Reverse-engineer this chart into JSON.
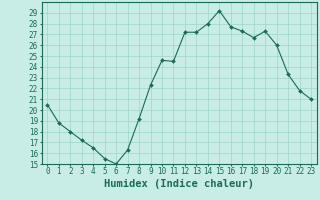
{
  "x": [
    0,
    1,
    2,
    3,
    4,
    5,
    6,
    7,
    8,
    9,
    10,
    11,
    12,
    13,
    14,
    15,
    16,
    17,
    18,
    19,
    20,
    21,
    22,
    23
  ],
  "y": [
    20.5,
    18.8,
    18.0,
    17.2,
    16.5,
    15.5,
    15.0,
    16.3,
    19.2,
    22.3,
    24.6,
    24.5,
    27.2,
    27.2,
    28.0,
    29.2,
    27.7,
    27.3,
    26.7,
    27.3,
    26.0,
    23.3,
    21.8,
    21.0
  ],
  "line_color": "#1a6b5a",
  "marker": "D",
  "marker_size": 2,
  "bg_color": "#c8ece6",
  "grid_color": "#a0d4cc",
  "xlabel": "Humidex (Indice chaleur)",
  "ylim": [
    15,
    30
  ],
  "xlim": [
    -0.5,
    23.5
  ],
  "yticks": [
    15,
    16,
    17,
    18,
    19,
    20,
    21,
    22,
    23,
    24,
    25,
    26,
    27,
    28,
    29
  ],
  "xticks": [
    0,
    1,
    2,
    3,
    4,
    5,
    6,
    7,
    8,
    9,
    10,
    11,
    12,
    13,
    14,
    15,
    16,
    17,
    18,
    19,
    20,
    21,
    22,
    23
  ],
  "tick_label_fontsize": 5.5,
  "xlabel_fontsize": 7.5,
  "axis_color": "#1a6b5a"
}
